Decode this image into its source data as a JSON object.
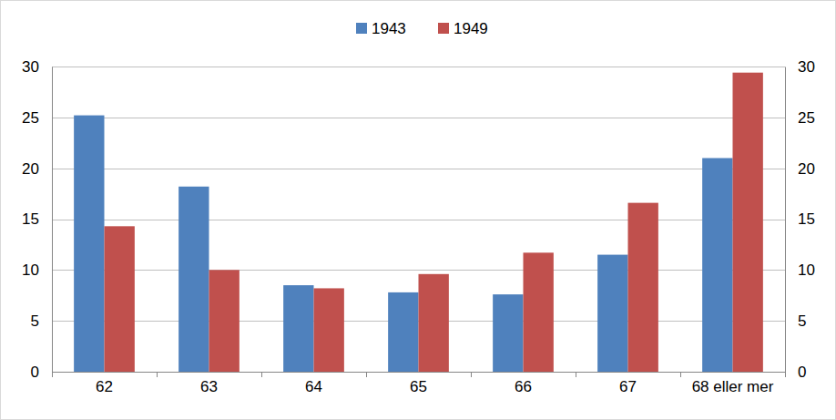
{
  "chart_data": {
    "type": "bar",
    "categories": [
      "62",
      "63",
      "64",
      "65",
      "66",
      "67",
      "68 eller mer"
    ],
    "series": [
      {
        "name": "1943",
        "color": "#4f81bd",
        "values": [
          25.2,
          18.2,
          8.5,
          7.8,
          7.6,
          11.5,
          21.0
        ]
      },
      {
        "name": "1949",
        "color": "#c0504d",
        "values": [
          14.3,
          10.0,
          8.2,
          9.6,
          11.7,
          16.6,
          29.4
        ]
      }
    ],
    "ylim": [
      0,
      30
    ],
    "yticks": [
      0,
      5,
      10,
      15,
      20,
      25,
      30
    ],
    "y2lim": [
      0,
      30
    ],
    "y2ticks": [
      0,
      5,
      10,
      15,
      20,
      25,
      30
    ],
    "grid": true,
    "legend": "top"
  }
}
